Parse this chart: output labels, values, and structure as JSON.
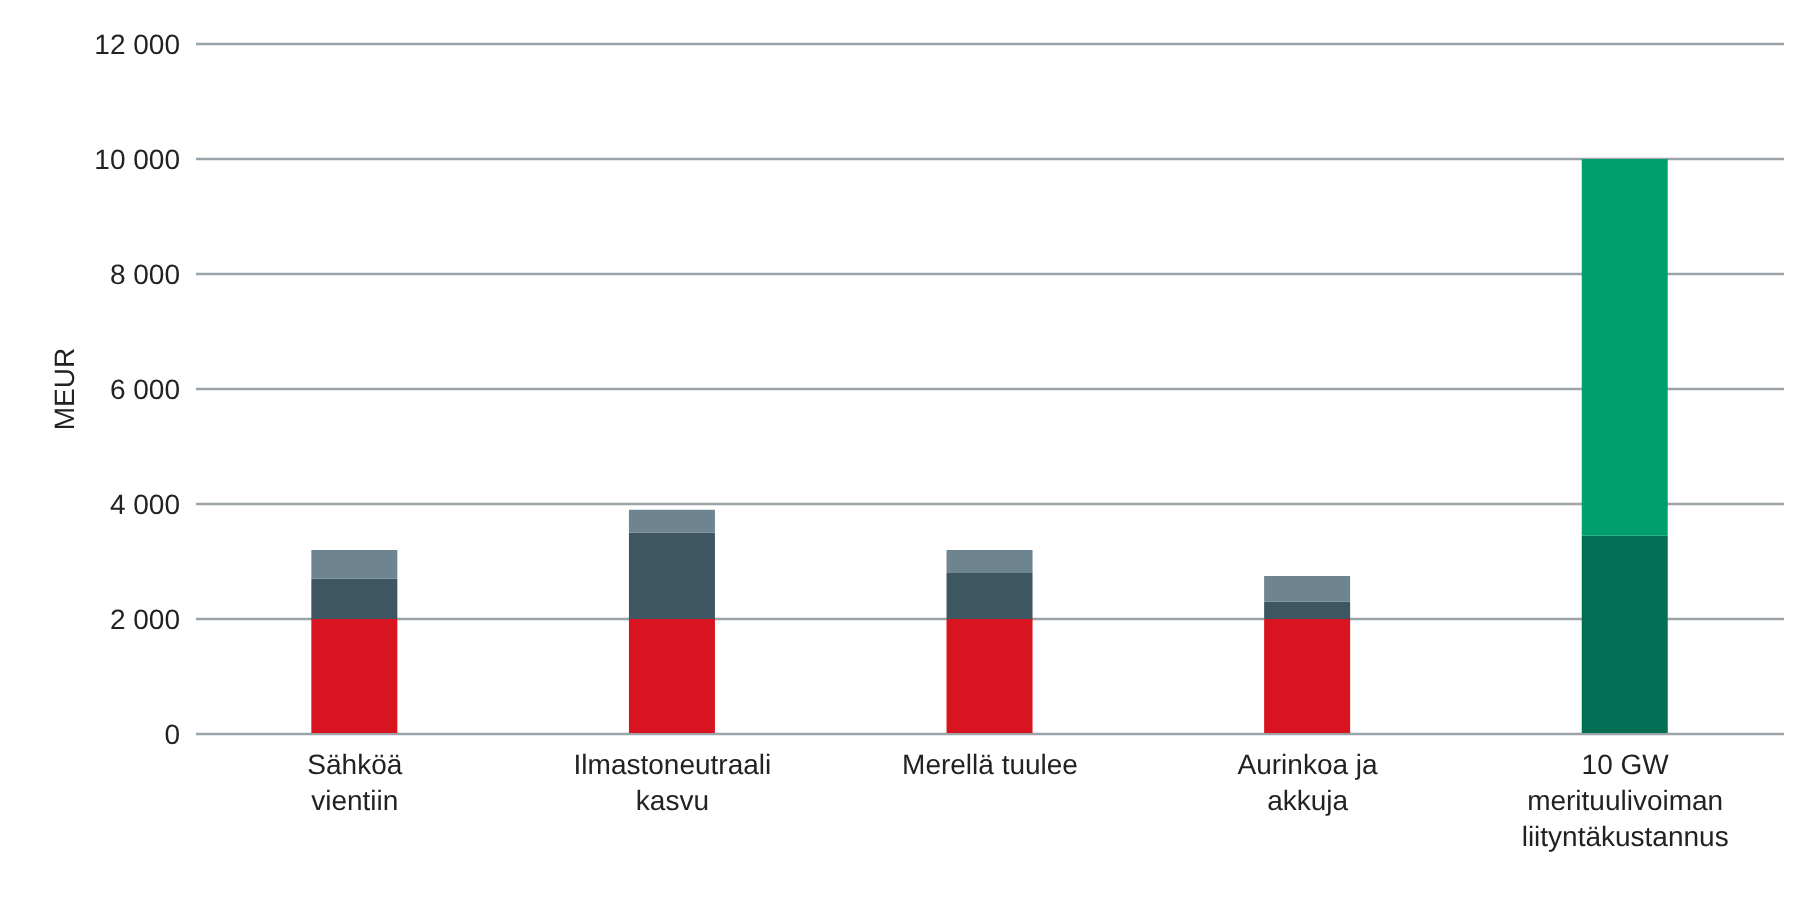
{
  "chart_data": {
    "type": "bar",
    "stacked": true,
    "ylabel": "MEUR",
    "categories": [
      "Sähköä vientiin",
      "Ilmastoneutraali kasvu",
      "Merellä tuulee",
      "Aurinkoa ja akkuja",
      "10 GW merituulivoiman liityntäkustannus"
    ],
    "series": [
      {
        "colors": [
          "#d7141f",
          "#d7141f",
          "#d7141f",
          "#d7141f",
          "#006f53"
        ],
        "values": [
          2000,
          2000,
          2000,
          2000,
          3450
        ]
      },
      {
        "colors": [
          "#3e5661",
          "#3e5661",
          "#3e5661",
          "#3e5661",
          "#00a06e"
        ],
        "values": [
          700,
          1500,
          800,
          300,
          6550
        ]
      },
      {
        "colors": [
          "#6e8490",
          "#6e8490",
          "#6e8490",
          "#6e8490",
          "#6e8490"
        ],
        "values": [
          500,
          400,
          400,
          450,
          null
        ]
      }
    ],
    "ylim": [
      0,
      12000
    ],
    "yticks": [
      {
        "value": 0,
        "label": "0"
      },
      {
        "value": 2000,
        "label": "2 000"
      },
      {
        "value": 4000,
        "label": "4 000"
      },
      {
        "value": 6000,
        "label": "6 000"
      },
      {
        "value": 8000,
        "label": "8 000"
      },
      {
        "value": 10000,
        "label": "10 000"
      },
      {
        "value": 12000,
        "label": "12 000"
      }
    ],
    "grid": "y",
    "legend": false
  }
}
